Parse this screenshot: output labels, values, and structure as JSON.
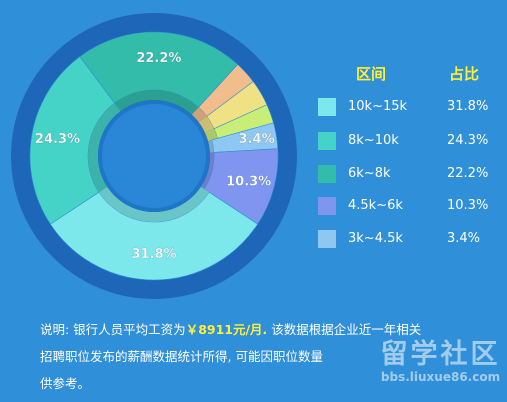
{
  "chart_data": {
    "type": "pie",
    "legend_header": {
      "range": "区间",
      "share": "占比"
    },
    "categories": [
      "10k~15k",
      "8k~10k",
      "6k~8k",
      "4.5k~6k",
      "3k~4.5k"
    ],
    "values": [
      31.8,
      24.3,
      22.2,
      10.3,
      3.4
    ],
    "colors": [
      "#7de8ec",
      "#45d3c8",
      "#33bcaa",
      "#7f95f0",
      "#8dc7f2"
    ],
    "value_labels": [
      "31.8%",
      "24.3%",
      "22.2%",
      "10.3%",
      "3.4%"
    ],
    "unlabeled_segments": [
      {
        "value": 2.5,
        "color": "#c8ee78"
      },
      {
        "value": 3.5,
        "color": "#f0e185"
      },
      {
        "value": 3.0,
        "color": "#f2bd8d"
      }
    ],
    "legend_placement": "right"
  },
  "note": {
    "prefix": "说明: 银行人员平均工资为",
    "highlight": "￥8911元/月.",
    "line1_rest": " 该数据根据企业近一年相关",
    "line2": "招聘职位发布的薪酬数据统计所得, 可能因职位数量",
    "line3": "供参考。"
  },
  "watermark": {
    "title": "留学社区",
    "url": "bbs.liuxue86.com"
  }
}
